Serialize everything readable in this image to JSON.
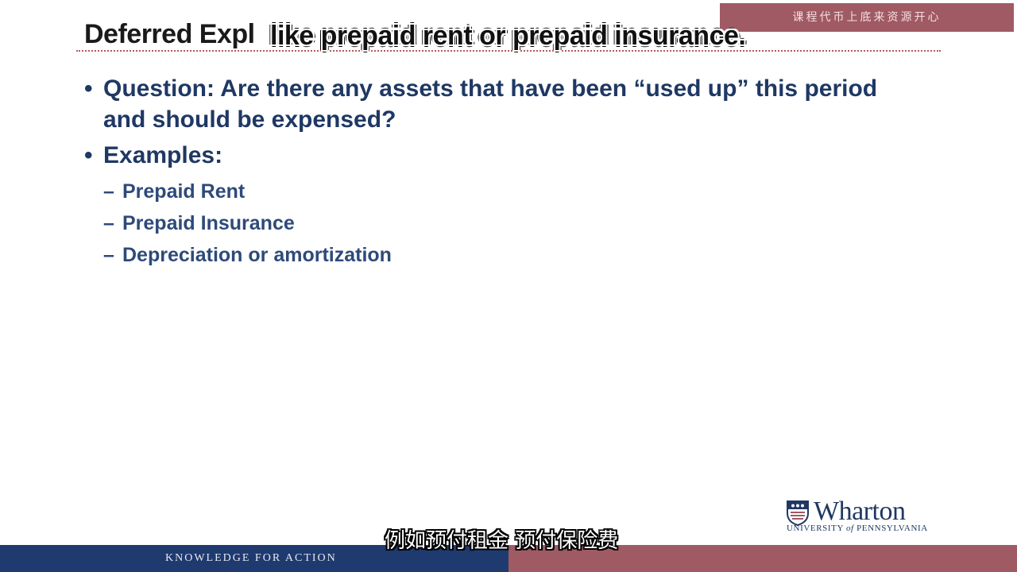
{
  "slide": {
    "title": "Deferred Expl",
    "bullets": [
      {
        "text": "Question:  Are there any assets that have been “used up” this period and should be expensed?"
      },
      {
        "text": "Examples:",
        "sub_items": [
          "Prepaid Rent",
          "Prepaid Insurance",
          "Depreciation or amortization"
        ]
      }
    ],
    "bullet_glyph": "•",
    "sub_glyph": "–"
  },
  "captions": {
    "english": "like prepaid rent or prepaid insurance.",
    "chinese": "例如预付租金 预付保险费"
  },
  "watermark": {
    "text": "课程代币上底来资源开心"
  },
  "logo": {
    "wordmark": "Wharton",
    "university_prefix": "UNIVERSITY",
    "university_of": "of",
    "university_suffix": "PENNSYLVANIA",
    "icon": "penn-shield-icon"
  },
  "footer": {
    "tagline": "KNOWLEDGE FOR ACTION"
  },
  "colors": {
    "navy": "#1f3a6e",
    "burgundy": "#a05a63",
    "heading": "#1f3864"
  }
}
